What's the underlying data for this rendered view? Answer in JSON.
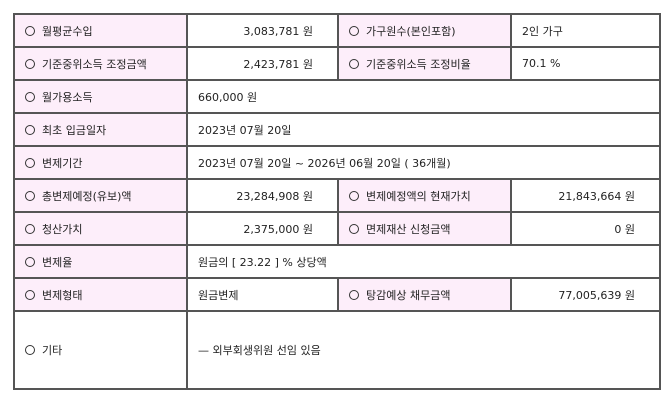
{
  "rows": [
    {
      "label1": "월평균수입",
      "value1": "3,083,781 원",
      "label2": "가구원수(본인포함)",
      "value2": "2인 가구"
    },
    {
      "label1": "기준중위소득 조정금액",
      "value1": "2,423,781 원",
      "label2": "기준중위소득 조정비율",
      "value2": "70.1 %"
    },
    {
      "label1": "월가용소득",
      "value1": "660,000 원"
    },
    {
      "label1": "최초 입금일자",
      "value1": "2023년 07월 20일"
    },
    {
      "label1": "변제기간",
      "value1": "2023년 07월 20일 ~ 2026년 06월 20일 ( 36개월)"
    },
    {
      "label1": "총변제예정(유보)액",
      "value1": "23,284,908 원",
      "label2": "변제예정액의 현재가치",
      "value2": "21,843,664 원"
    },
    {
      "label1": "청산가치",
      "value1": "2,375,000 원",
      "label2": "면제재산 신청금액",
      "value2": "0 원"
    },
    {
      "label1": "변제율",
      "value1": "원금의 [ 23.22 ] % 상당액"
    },
    {
      "label1": "변제형태",
      "value1": "원금변제",
      "label2": "탕감예상 채무금액",
      "value2": "77,005,639 원"
    },
    {
      "label1": "기타",
      "value1": "— 외부회생위원 선임 있음"
    }
  ],
  "colors": {
    "label_bg": "#fdeefa",
    "border": "#555555"
  }
}
